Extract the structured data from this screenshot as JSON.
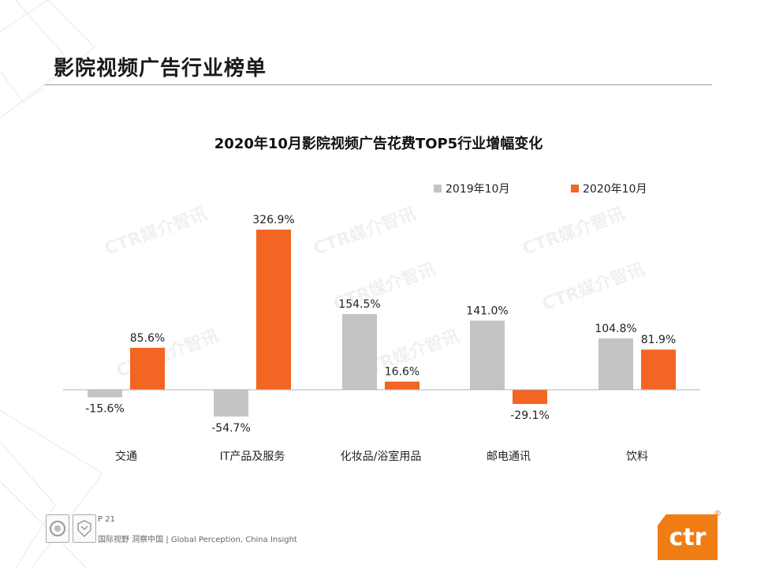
{
  "page": {
    "title": "影院视频广告行业榜单",
    "page_number": "P 21",
    "slogan": "国际视野  洞察中国 |  Global Perception,  China Insight",
    "watermark": "CTR媒介智讯",
    "logo_text": "ctr",
    "logo_mark": "®",
    "badges": [
      {
        "icon": "sgs-certification-badge"
      },
      {
        "icon": "ukas-certification-badge"
      }
    ]
  },
  "colors": {
    "series_2019": "#c4c4c4",
    "series_2020": "#f26522",
    "accent": "#f07d14"
  },
  "chart_data": {
    "type": "bar",
    "title": "2020年10月影院视频广告花费TOP5行业增幅变化",
    "xlabel": "",
    "ylabel": "",
    "legend_position": "top-right",
    "grid": false,
    "categories": [
      "交通",
      "IT产品及服务",
      "化妆品/浴室用品",
      "邮电通讯",
      "饮料"
    ],
    "series": [
      {
        "name": "2019年10月",
        "values": [
          -15.6,
          -54.7,
          154.5,
          141.0,
          104.8
        ],
        "labels": [
          "-15.6%",
          "-54.7%",
          "154.5%",
          "141.0%",
          "104.8%"
        ]
      },
      {
        "name": "2020年10月",
        "values": [
          85.6,
          326.9,
          16.6,
          -29.1,
          81.9
        ],
        "labels": [
          "85.6%",
          "326.9%",
          "16.6%",
          "-29.1%",
          "81.9%"
        ]
      }
    ],
    "ylim": [
      -60,
      330
    ]
  }
}
